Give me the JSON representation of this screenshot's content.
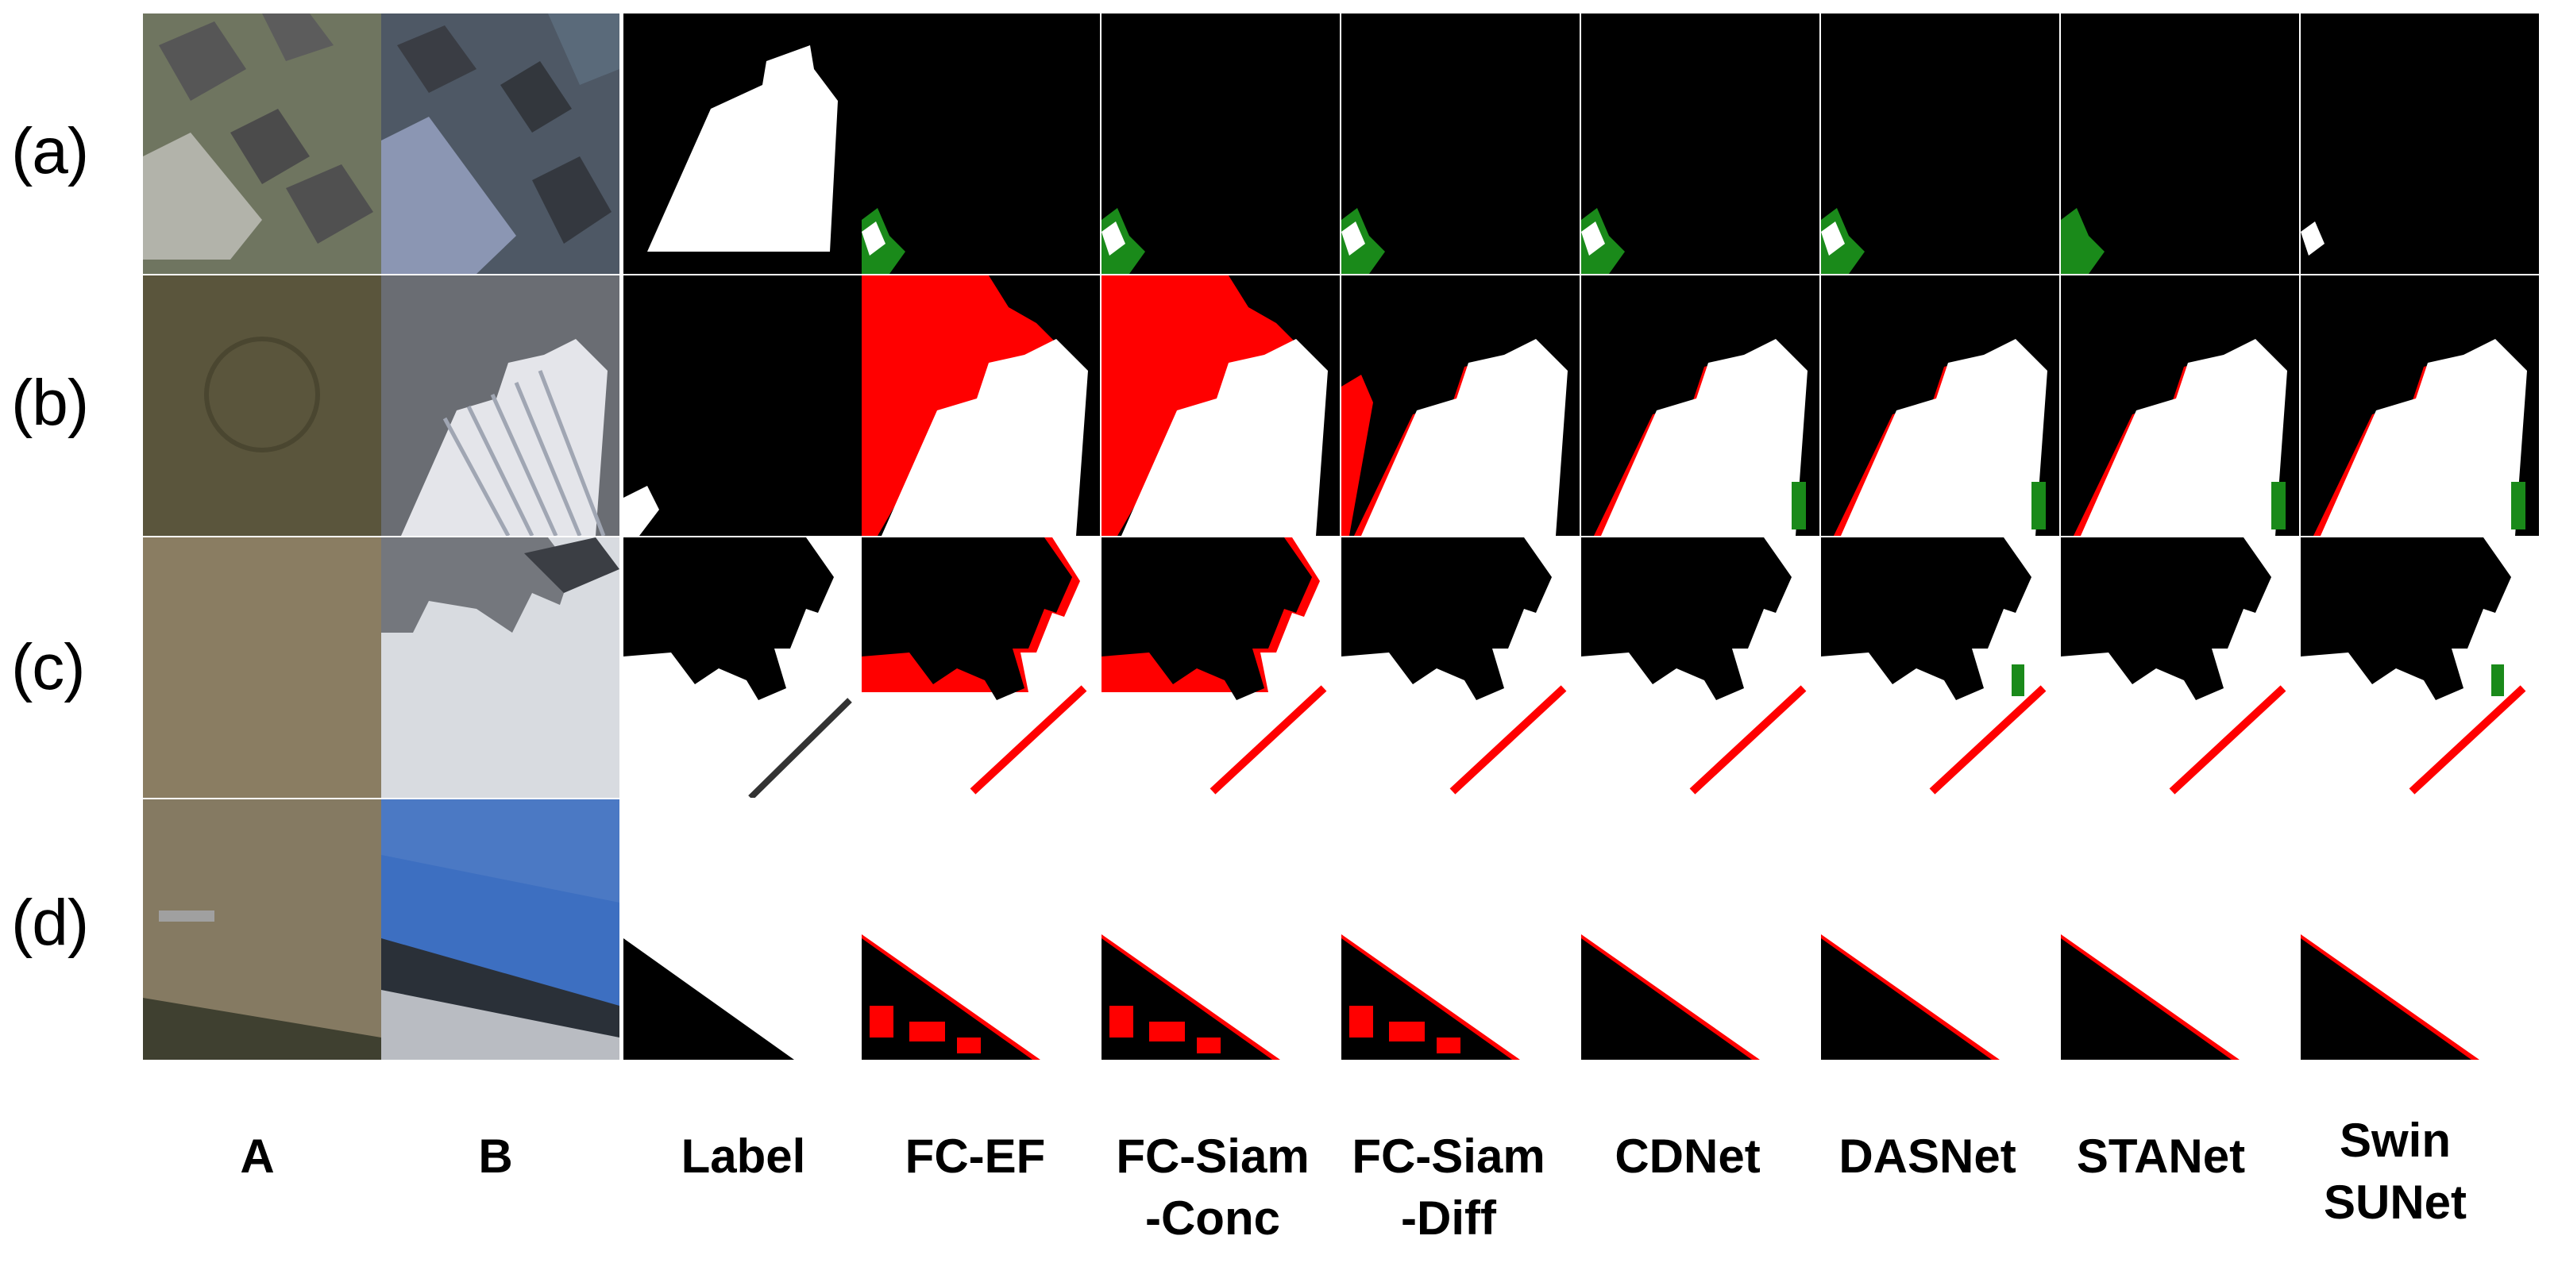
{
  "figure": {
    "rows": [
      "(a)",
      "(b)",
      "(c)",
      "(d)"
    ],
    "columns": [
      {
        "line1": "A",
        "line2": ""
      },
      {
        "line1": "B",
        "line2": ""
      },
      {
        "line1": "Label",
        "line2": ""
      },
      {
        "line1": "FC-EF",
        "line2": ""
      },
      {
        "line1": "FC-Siam",
        "line2": "-Conc"
      },
      {
        "line1": "FC-Siam",
        "line2": "-Diff"
      },
      {
        "line1": "CDNet",
        "line2": ""
      },
      {
        "line1": "DASNet",
        "line2": ""
      },
      {
        "line1": "STANet",
        "line2": ""
      },
      {
        "line1": "Swin",
        "line2": "SUNet"
      }
    ],
    "colors": {
      "true_positive": "#ffffff",
      "true_negative": "#000000",
      "false_positive": "#ff0000",
      "false_negative": "#1a8a1a"
    }
  }
}
